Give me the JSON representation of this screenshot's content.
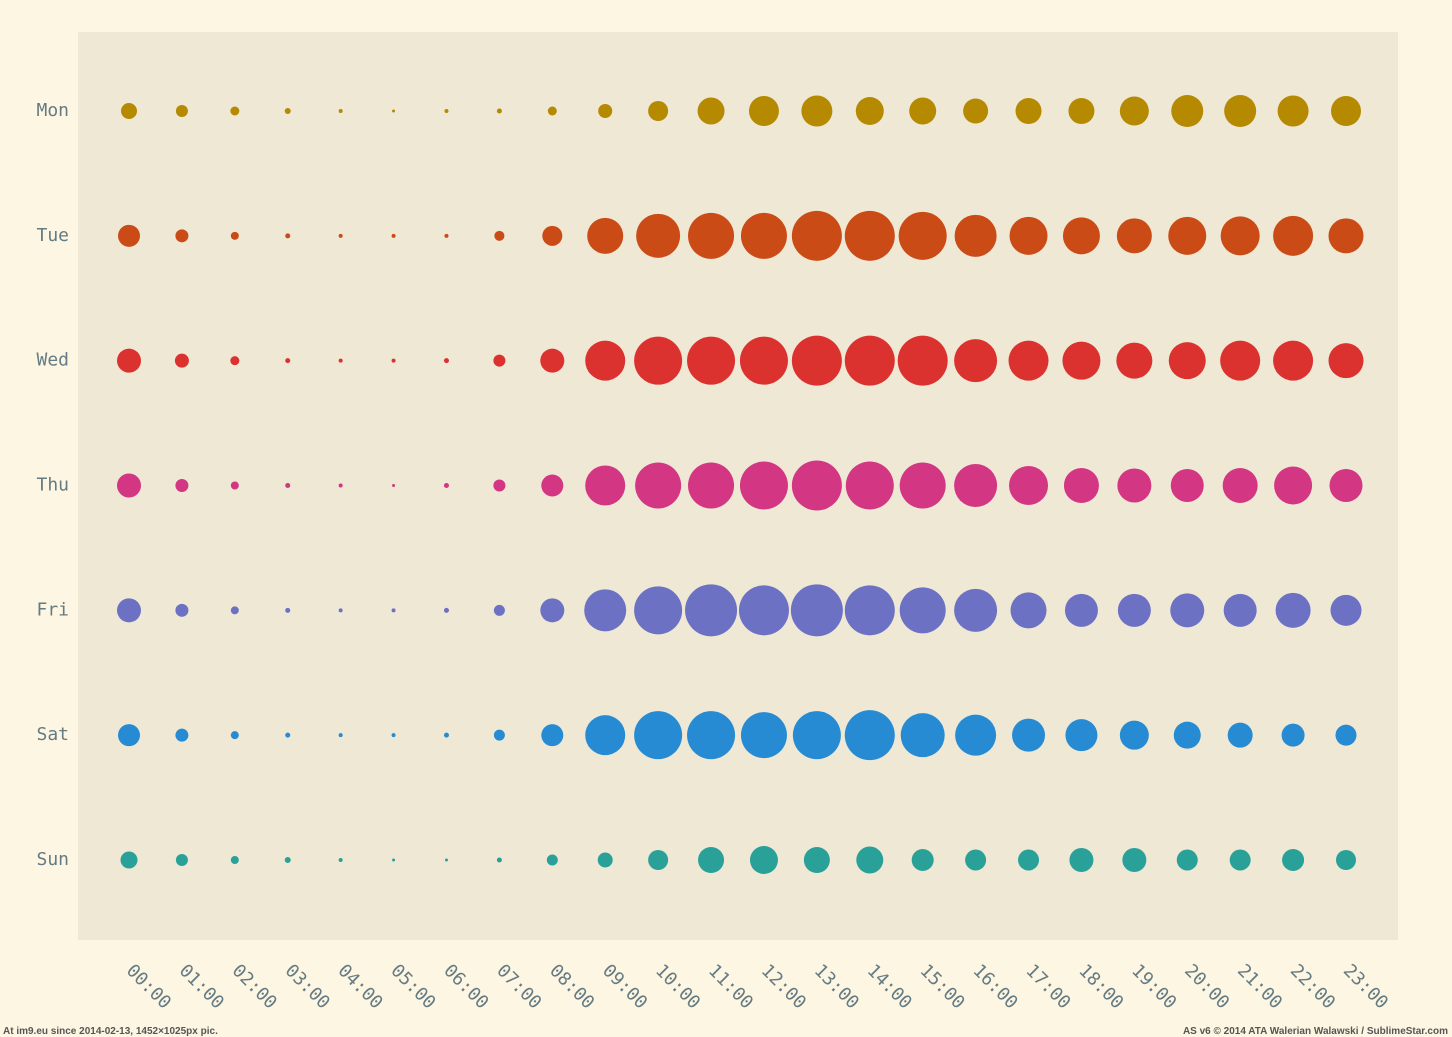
{
  "chart_data": {
    "type": "bubble",
    "categories": [
      "00:00",
      "01:00",
      "02:00",
      "03:00",
      "04:00",
      "05:00",
      "06:00",
      "07:00",
      "08:00",
      "09:00",
      "10:00",
      "11:00",
      "12:00",
      "13:00",
      "14:00",
      "15:00",
      "16:00",
      "17:00",
      "18:00",
      "19:00",
      "20:00",
      "21:00",
      "22:00",
      "23:00"
    ],
    "series": [
      {
        "name": "Mon",
        "color": "#b58900",
        "values": [
          16,
          12,
          9,
          6,
          4,
          3,
          4,
          5,
          9,
          14,
          20,
          27,
          30,
          31,
          28,
          27,
          25,
          26,
          26,
          29,
          32,
          32,
          31,
          30
        ]
      },
      {
        "name": "Tue",
        "color": "#cb4b16",
        "values": [
          22,
          13,
          8,
          5,
          4,
          4,
          4,
          10,
          20,
          36,
          44,
          46,
          46,
          50,
          50,
          48,
          42,
          38,
          37,
          35,
          38,
          39,
          40,
          35
        ]
      },
      {
        "name": "Wed",
        "color": "#dc322f",
        "values": [
          24,
          14,
          9,
          5,
          4,
          4,
          5,
          12,
          24,
          40,
          48,
          48,
          48,
          50,
          50,
          50,
          43,
          40,
          38,
          36,
          37,
          40,
          40,
          35
        ]
      },
      {
        "name": "Thu",
        "color": "#d33682",
        "values": [
          24,
          13,
          8,
          5,
          4,
          3,
          5,
          12,
          22,
          40,
          46,
          46,
          48,
          50,
          48,
          46,
          43,
          39,
          35,
          34,
          33,
          35,
          38,
          33
        ]
      },
      {
        "name": "Fri",
        "color": "#6c71c4",
        "values": [
          24,
          13,
          8,
          5,
          4,
          4,
          5,
          11,
          24,
          42,
          48,
          52,
          50,
          52,
          50,
          46,
          43,
          36,
          33,
          33,
          34,
          33,
          35,
          31
        ]
      },
      {
        "name": "Sat",
        "color": "#268bd2",
        "values": [
          22,
          13,
          8,
          5,
          4,
          4,
          5,
          11,
          22,
          40,
          48,
          48,
          46,
          48,
          50,
          44,
          41,
          33,
          32,
          29,
          27,
          25,
          23,
          21
        ]
      },
      {
        "name": "Sun",
        "color": "#2aa198",
        "values": [
          17,
          12,
          8,
          6,
          4,
          3,
          3,
          5,
          11,
          15,
          20,
          26,
          28,
          26,
          27,
          22,
          21,
          21,
          24,
          24,
          21,
          21,
          22,
          20
        ]
      }
    ]
  },
  "footer": {
    "left": "At im9.eu  since 2014-02-13, 1452×1025px pic.",
    "right": "AS v6 © 2014 ATA Walerian Walawski / SublimeStar.com"
  }
}
